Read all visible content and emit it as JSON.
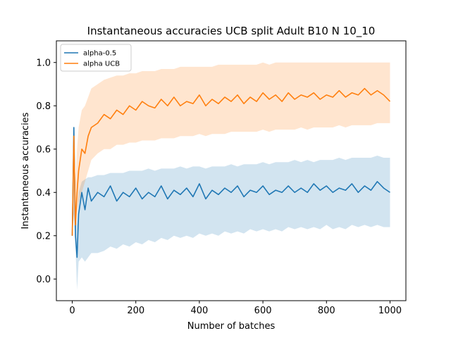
{
  "chart_data": {
    "type": "line",
    "title": "Instantaneous accuracies UCB split Adult B10 N 10_10",
    "xlabel": "Number of batches",
    "ylabel": "Instantaneous accuracies",
    "xlim": [
      -50,
      1050
    ],
    "ylim": [
      -0.1,
      1.1
    ],
    "xticks": [
      0,
      200,
      400,
      600,
      800,
      1000
    ],
    "yticks": [
      0.0,
      0.2,
      0.4,
      0.6,
      0.8,
      1.0
    ],
    "xtick_labels": [
      "0",
      "200",
      "400",
      "600",
      "800",
      "1000"
    ],
    "ytick_labels": [
      "0.0",
      "0.2",
      "0.4",
      "0.6",
      "0.8",
      "1.0"
    ],
    "grid": false,
    "legend": "top-left",
    "series": [
      {
        "name": "alpha-0.5",
        "color": "#1f77b4",
        "band_opacity": 0.2,
        "x": [
          0,
          5,
          10,
          15,
          20,
          30,
          40,
          50,
          60,
          80,
          100,
          120,
          140,
          160,
          180,
          200,
          220,
          240,
          260,
          280,
          300,
          320,
          340,
          360,
          380,
          400,
          420,
          440,
          460,
          480,
          500,
          520,
          540,
          560,
          580,
          600,
          620,
          640,
          660,
          680,
          700,
          720,
          740,
          760,
          780,
          800,
          820,
          840,
          860,
          880,
          900,
          920,
          940,
          960,
          980,
          1000
        ],
        "y": [
          0.2,
          0.7,
          0.2,
          0.1,
          0.3,
          0.4,
          0.32,
          0.42,
          0.36,
          0.4,
          0.38,
          0.43,
          0.36,
          0.4,
          0.38,
          0.42,
          0.37,
          0.4,
          0.38,
          0.43,
          0.37,
          0.41,
          0.39,
          0.42,
          0.38,
          0.44,
          0.37,
          0.41,
          0.39,
          0.42,
          0.4,
          0.43,
          0.38,
          0.41,
          0.4,
          0.43,
          0.39,
          0.41,
          0.4,
          0.43,
          0.4,
          0.42,
          0.4,
          0.44,
          0.41,
          0.43,
          0.4,
          0.42,
          0.41,
          0.44,
          0.4,
          0.43,
          0.41,
          0.45,
          0.42,
          0.4
        ],
        "lower": [
          0.2,
          0.3,
          0.15,
          -0.05,
          0.08,
          0.1,
          0.08,
          0.1,
          0.12,
          0.12,
          0.13,
          0.15,
          0.14,
          0.16,
          0.15,
          0.17,
          0.16,
          0.18,
          0.17,
          0.19,
          0.18,
          0.2,
          0.19,
          0.2,
          0.19,
          0.21,
          0.2,
          0.21,
          0.2,
          0.22,
          0.21,
          0.22,
          0.21,
          0.23,
          0.22,
          0.23,
          0.22,
          0.23,
          0.22,
          0.24,
          0.23,
          0.24,
          0.23,
          0.24,
          0.23,
          0.25,
          0.23,
          0.24,
          0.23,
          0.25,
          0.24,
          0.25,
          0.24,
          0.25,
          0.24,
          0.24
        ],
        "upper": [
          0.2,
          0.7,
          0.3,
          0.25,
          0.4,
          0.45,
          0.46,
          0.47,
          0.47,
          0.48,
          0.48,
          0.49,
          0.49,
          0.49,
          0.5,
          0.5,
          0.5,
          0.51,
          0.5,
          0.51,
          0.51,
          0.51,
          0.52,
          0.51,
          0.52,
          0.52,
          0.51,
          0.52,
          0.52,
          0.52,
          0.53,
          0.52,
          0.53,
          0.53,
          0.53,
          0.54,
          0.53,
          0.54,
          0.54,
          0.54,
          0.55,
          0.54,
          0.55,
          0.54,
          0.55,
          0.55,
          0.55,
          0.56,
          0.55,
          0.56,
          0.56,
          0.56,
          0.56,
          0.57,
          0.56,
          0.56
        ]
      },
      {
        "name": "alpha UCB",
        "color": "#ff7f0e",
        "band_opacity": 0.2,
        "x": [
          0,
          5,
          10,
          15,
          20,
          30,
          40,
          50,
          60,
          80,
          100,
          120,
          140,
          160,
          180,
          200,
          220,
          240,
          260,
          280,
          300,
          320,
          340,
          360,
          380,
          400,
          420,
          440,
          460,
          480,
          500,
          520,
          540,
          560,
          580,
          600,
          620,
          640,
          660,
          680,
          700,
          720,
          740,
          760,
          780,
          800,
          820,
          840,
          860,
          880,
          900,
          920,
          940,
          960,
          980,
          1000
        ],
        "y": [
          0.2,
          0.66,
          0.25,
          0.4,
          0.5,
          0.6,
          0.58,
          0.66,
          0.7,
          0.72,
          0.76,
          0.74,
          0.78,
          0.76,
          0.8,
          0.78,
          0.82,
          0.8,
          0.79,
          0.83,
          0.8,
          0.84,
          0.8,
          0.82,
          0.81,
          0.85,
          0.8,
          0.83,
          0.81,
          0.84,
          0.82,
          0.85,
          0.81,
          0.84,
          0.82,
          0.86,
          0.83,
          0.85,
          0.82,
          0.86,
          0.83,
          0.85,
          0.84,
          0.86,
          0.83,
          0.85,
          0.84,
          0.87,
          0.84,
          0.86,
          0.85,
          0.88,
          0.85,
          0.87,
          0.85,
          0.82
        ],
        "lower": [
          0.2,
          0.3,
          0.2,
          0.3,
          0.35,
          0.4,
          0.45,
          0.5,
          0.55,
          0.58,
          0.6,
          0.6,
          0.62,
          0.62,
          0.63,
          0.63,
          0.64,
          0.64,
          0.64,
          0.65,
          0.65,
          0.65,
          0.66,
          0.66,
          0.66,
          0.67,
          0.66,
          0.67,
          0.67,
          0.67,
          0.68,
          0.68,
          0.68,
          0.68,
          0.68,
          0.69,
          0.68,
          0.69,
          0.69,
          0.69,
          0.69,
          0.7,
          0.69,
          0.7,
          0.7,
          0.7,
          0.7,
          0.71,
          0.7,
          0.71,
          0.71,
          0.71,
          0.71,
          0.72,
          0.72,
          0.72
        ],
        "upper": [
          0.2,
          0.7,
          0.45,
          0.6,
          0.7,
          0.78,
          0.8,
          0.84,
          0.88,
          0.9,
          0.92,
          0.93,
          0.94,
          0.94,
          0.95,
          0.95,
          0.96,
          0.96,
          0.96,
          0.97,
          0.97,
          0.97,
          0.98,
          0.98,
          0.98,
          0.98,
          0.98,
          0.98,
          0.99,
          0.99,
          0.99,
          0.99,
          0.99,
          0.99,
          0.99,
          1.0,
          0.99,
          1.0,
          1.0,
          1.0,
          1.0,
          1.0,
          1.0,
          1.0,
          1.0,
          1.0,
          1.0,
          1.0,
          1.0,
          1.0,
          1.0,
          1.0,
          1.0,
          1.0,
          1.0,
          1.0
        ]
      }
    ]
  }
}
